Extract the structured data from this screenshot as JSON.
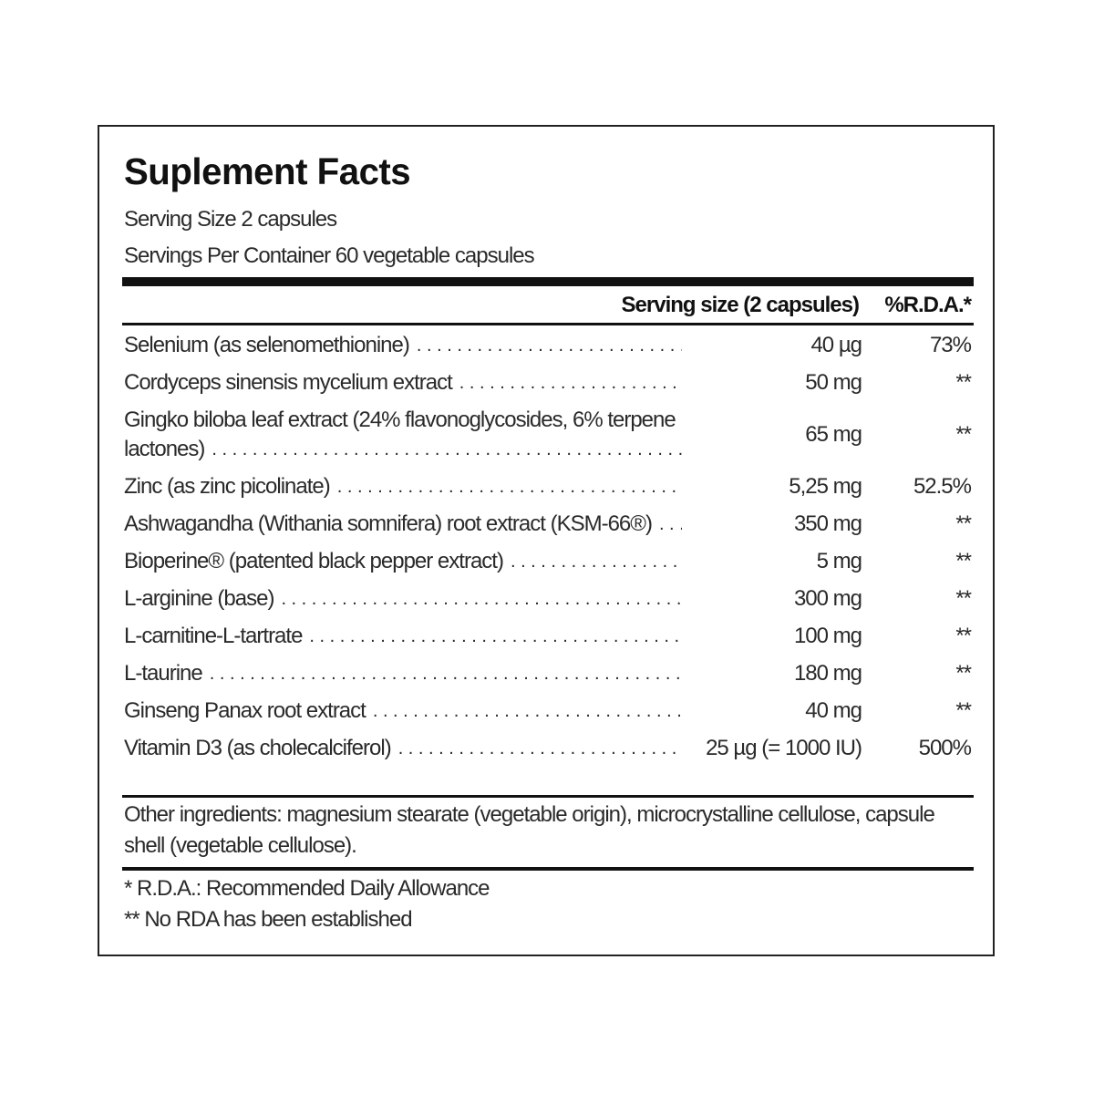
{
  "title": "Suplement Facts",
  "serving_size": "Serving Size 2 capsules",
  "servings_per_container": "Servings Per Container 60 vegetable capsules",
  "table": {
    "headers": {
      "amount": "Serving size (2 capsules)",
      "rda": "%R.D.A.*"
    },
    "rows": [
      {
        "name": "Selenium (as selenomethionine)",
        "amount": "40 µg",
        "rda": "73%"
      },
      {
        "name": "Cordyceps sinensis mycelium extract",
        "amount": "50 mg",
        "rda": "**"
      },
      {
        "name": "Gingko biloba leaf extract (24% flavonoglycosides, 6% terpene lactones)",
        "amount": "65 mg",
        "rda": "**"
      },
      {
        "name": "Zinc (as zinc picolinate)",
        "amount": "5,25 mg",
        "rda": "52.5%"
      },
      {
        "name": "Ashwagandha (Withania somnifera) root extract (KSM-66®)",
        "amount": "350 mg",
        "rda": "**"
      },
      {
        "name": "Bioperine® (patented black pepper extract)",
        "amount": "5 mg",
        "rda": "**"
      },
      {
        "name": "L-arginine (base)",
        "amount": "300 mg",
        "rda": "**"
      },
      {
        "name": "L-carnitine-L-tartrate",
        "amount": "100 mg",
        "rda": "**"
      },
      {
        "name": "L-taurine",
        "amount": "180 mg",
        "rda": "**"
      },
      {
        "name": "Ginseng Panax root extract",
        "amount": "40 mg",
        "rda": "**"
      },
      {
        "name": "Vitamin D3 (as cholecalciferol)",
        "amount": "25 µg (= 1000 IU)",
        "rda": "500%"
      }
    ]
  },
  "other_ingredients": "Other ingredients: magnesium stearate (vegetable origin), microcrystalline cellulose, capsule shell (vegetable cellulose).",
  "footnotes": [
    "* R.D.A.: Recommended Daily Allowance",
    "** No RDA has been established"
  ]
}
